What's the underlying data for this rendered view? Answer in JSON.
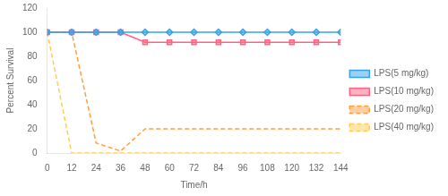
{
  "chart_data": {
    "type": "line",
    "x": [
      0,
      12,
      24,
      36,
      48,
      60,
      72,
      84,
      96,
      108,
      120,
      132,
      144
    ],
    "series": [
      {
        "name": "LPS(5 mg/kg)",
        "values": [
          100,
          100,
          100,
          100,
          100,
          100,
          100,
          100,
          100,
          100,
          100,
          100,
          100
        ],
        "marker": "diamond",
        "line_style": "solid"
      },
      {
        "name": "LPS(10 mg/kg)",
        "values": [
          100,
          100,
          100,
          100,
          91.67,
          91.67,
          91.67,
          91.67,
          91.67,
          91.67,
          91.67,
          91.67,
          91.67
        ],
        "marker": "square",
        "line_style": "solid"
      },
      {
        "name": "LPS(20 mg/kg)",
        "values": [
          100,
          100,
          8.33,
          1.67,
          20,
          20,
          20,
          20,
          20,
          20,
          20,
          20,
          20
        ],
        "marker": "none",
        "line_style": "dashed"
      },
      {
        "name": "LPS(40 mg/kg)",
        "values": [
          100,
          0,
          0,
          0,
          0,
          0,
          0,
          0,
          0,
          0,
          0,
          0,
          0
        ],
        "marker": "none",
        "line_style": "dashed"
      }
    ],
    "xlabel": "Time/h",
    "ylabel": "Percent Survival",
    "xlim": [
      0,
      144
    ],
    "xticks": [
      0,
      12,
      24,
      36,
      48,
      60,
      72,
      84,
      96,
      108,
      120,
      132,
      144
    ],
    "ylim": [
      0,
      120
    ],
    "yticks": [
      0,
      20,
      40,
      60,
      80,
      100,
      120
    ],
    "grid": false,
    "legend": "right"
  }
}
